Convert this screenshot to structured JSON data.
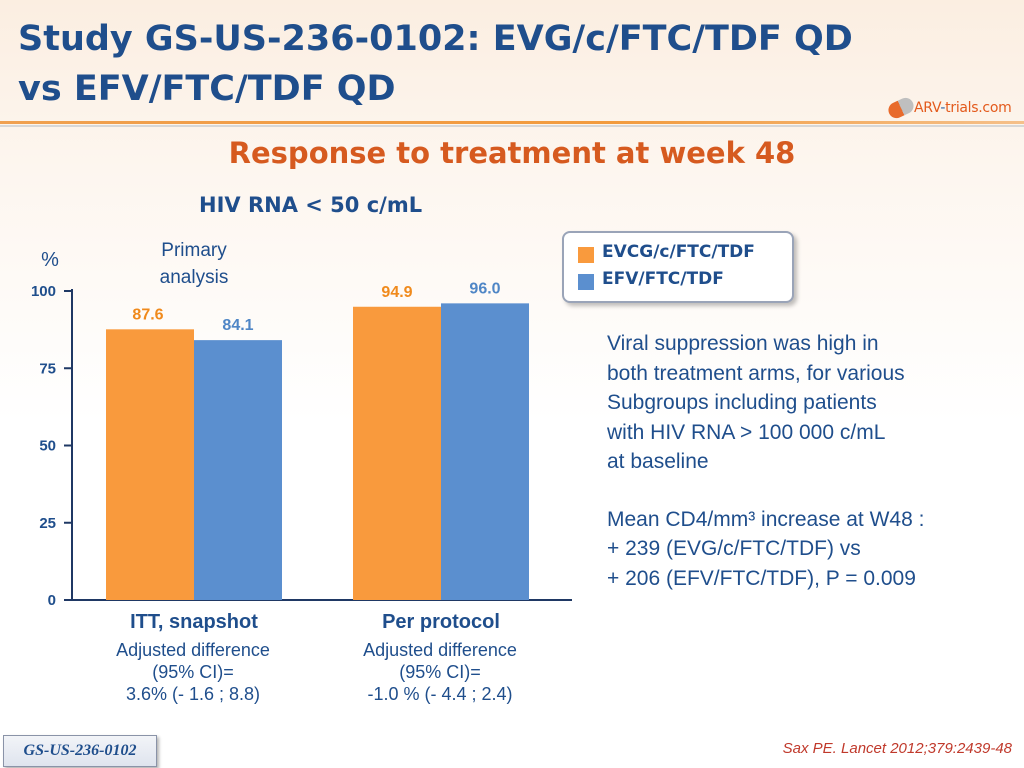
{
  "slide": {
    "title": "Study GS-US-236-0102: EVG/c/FTC/TDF QD vs EFV/FTC/TDF QD",
    "subtitle": "Response to treatment at week 48",
    "logo": {
      "text_a": "ARV",
      "text_b": "-",
      "text_c": "trials.com"
    },
    "badge": "GS-US-236-0102",
    "citation": "Sax PE. Lancet 2012;379:2439-48"
  },
  "legend": [
    {
      "label": "EVCG/c/FTC/TDF",
      "color": "#f99a3d"
    },
    {
      "label": "EFV/FTC/TDF",
      "color": "#5b8fcf"
    }
  ],
  "notes": [
    "Viral suppression was high in\nboth treatment arms, for various\nSubgroups including patients\nwith HIV RNA > 100 000 c/mL\nat baseline",
    "Mean CD4/mm³ increase at W48 :\n+ 239 (EVG/c/FTC/TDF) vs\n+ 206 (EFV/FTC/TDF), P = 0.009"
  ],
  "chart_data": {
    "type": "bar",
    "title": "HIV RNA < 50 c/mL",
    "ylabel": "%",
    "ylim": [
      0,
      100
    ],
    "yticks": [
      0,
      25,
      50,
      75,
      100
    ],
    "grid": false,
    "annotation": "Primary\nanalysis",
    "categories": [
      "ITT, snapshot",
      "Per protocol"
    ],
    "category_notes": [
      "Adjusted difference\n(95% CI)=\n3.6% (- 1.6 ; 8.8)",
      "Adjusted difference\n(95% CI)=\n-1.0 % (- 4.4 ; 2.4)"
    ],
    "series": [
      {
        "name": "EVCG/c/FTC/TDF",
        "values": [
          87.6,
          94.9
        ],
        "color": "#f99a3d",
        "label_color": "#f08a1c"
      },
      {
        "name": "EFV/FTC/TDF",
        "values": [
          84.1,
          96.0
        ],
        "color": "#5b8fcf",
        "label_color": "#4f86c6"
      }
    ]
  }
}
